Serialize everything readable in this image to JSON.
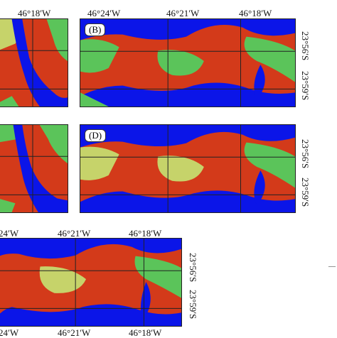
{
  "panels": {
    "A": {
      "lon_labels": [
        "46°18′W"
      ]
    },
    "B": {
      "label": "(B)",
      "lon_labels": [
        "46°24′W",
        "46°21′W",
        "46°18′W"
      ],
      "lat_labels": [
        "23°56′S",
        "23°59′S"
      ]
    },
    "C": {},
    "D": {
      "label": "(D)",
      "lat_labels": [
        "23°56′S",
        "23°59′S"
      ]
    },
    "E": {
      "lon_labels_top": [
        "24′W",
        "46°21′W",
        "46°18′W"
      ],
      "lon_labels_bottom": [
        "24′W",
        "46°21′W",
        "46°18′W"
      ],
      "lat_labels": [
        "23°56′S",
        "23°59′S"
      ]
    }
  },
  "side_mark": "—",
  "colors": {
    "water": "#0b15e8",
    "urban": "#d33a1a",
    "vegetation": "#5bc45a",
    "mixed": "#c6d36a"
  }
}
